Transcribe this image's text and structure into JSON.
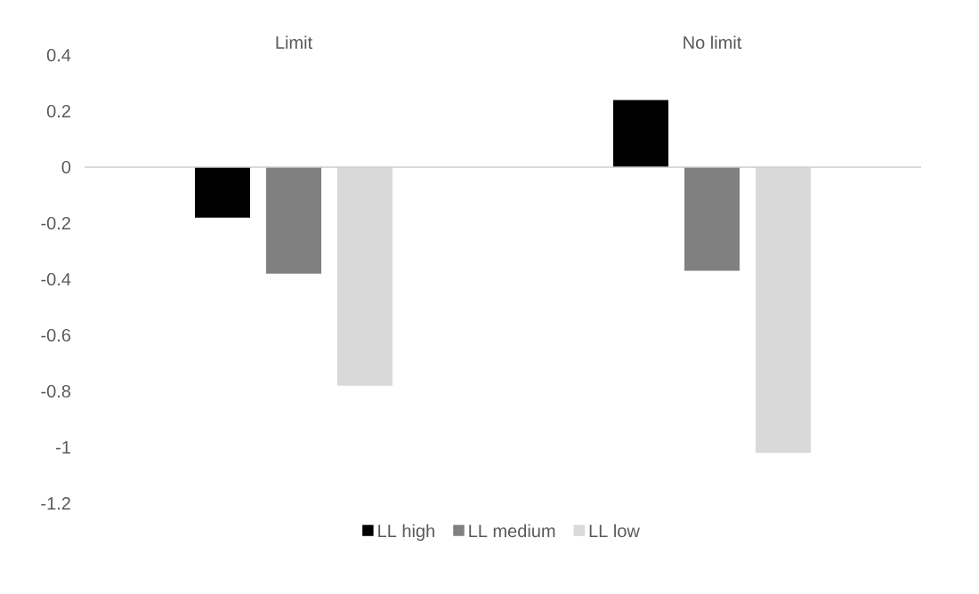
{
  "chart_data": {
    "type": "bar",
    "categories": [
      "Limit",
      "No limit"
    ],
    "series": [
      {
        "name": "LL high",
        "color": "#000000",
        "values": [
          -0.18,
          0.24
        ]
      },
      {
        "name": "LL medium",
        "color": "#808080",
        "values": [
          -0.38,
          -0.37
        ]
      },
      {
        "name": "LL low",
        "color": "#d9d9d9",
        "values": [
          -0.78,
          -1.02
        ]
      }
    ],
    "ylim": [
      -1.2,
      0.4
    ],
    "yticks": [
      -1.2,
      -1,
      -0.8,
      -0.6,
      -0.4,
      -0.2,
      0,
      0.2,
      0.4
    ],
    "legend": "bottom"
  }
}
